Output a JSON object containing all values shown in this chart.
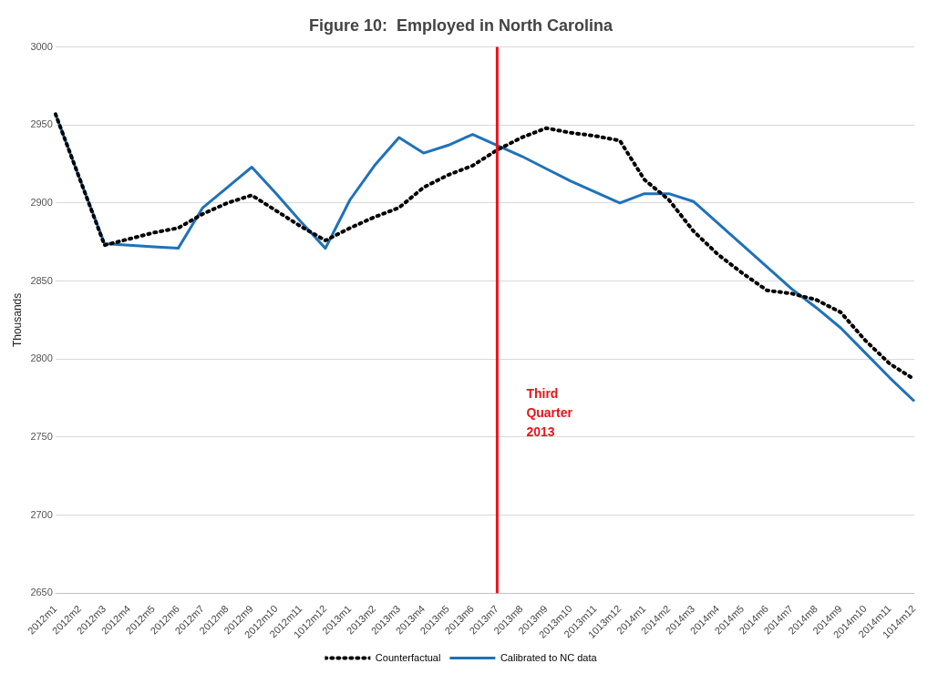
{
  "chart_data": {
    "type": "line",
    "title": "Figure 10:  Employed in North Carolina",
    "ylabel": "Thousands",
    "categories": [
      "2012m1",
      "2012m2",
      "2012m3",
      "2012m4",
      "2012m5",
      "2012m6",
      "2012m7",
      "2012m8",
      "2012m9",
      "2012m10",
      "2012m11",
      "1012m12",
      "2013m1",
      "2013m2",
      "2013m3",
      "2013m4",
      "2013m5",
      "2013m6",
      "2013m7",
      "2013m8",
      "2013m9",
      "2013m10",
      "2013m11",
      "1013m12",
      "2014m1",
      "2014m2",
      "2014m3",
      "2014m4",
      "2014m5",
      "2014m6",
      "2014m7",
      "2014m8",
      "2014m9",
      "2014m10",
      "2014m11",
      "1014m12"
    ],
    "series": [
      {
        "name": "Counterfactual",
        "color": "#000000",
        "line_style": "dotted",
        "values": [
          2957,
          2915,
          2873,
          2877,
          2881,
          2884,
          2893,
          2900,
          2905,
          2895,
          2885,
          2876,
          2884,
          2891,
          2897,
          2910,
          2918,
          2924,
          2934,
          2942,
          2948,
          2945,
          2943,
          2940,
          2915,
          2902,
          2882,
          2867,
          2855,
          2844,
          2842,
          2838,
          2830,
          2812,
          2797,
          2787
        ]
      },
      {
        "name": "Calibrated to NC data",
        "color": "#1f72b8",
        "line_style": "solid",
        "values": [
          2957,
          2915,
          2874,
          2873,
          2872,
          2871,
          2897,
          2910,
          2923,
          2906,
          2888,
          2871,
          2902,
          2924,
          2942,
          2932,
          2937,
          2944,
          2937,
          2930,
          2922,
          2914,
          2907,
          2900,
          2906,
          2906,
          2901,
          2887,
          2873,
          2859,
          2845,
          2833,
          2820,
          2804,
          2788,
          2773
        ]
      }
    ],
    "ylim": [
      2650,
      3000
    ],
    "yticks": [
      2650,
      2700,
      2750,
      2800,
      2850,
      2900,
      2950,
      3000
    ],
    "ref_lines": [
      {
        "axis": "x",
        "value": "2013m7",
        "label": "Third Quarter 2013",
        "color": "#e8141b"
      }
    ],
    "grid": "y",
    "legend": "bottom",
    "marker": "none"
  }
}
